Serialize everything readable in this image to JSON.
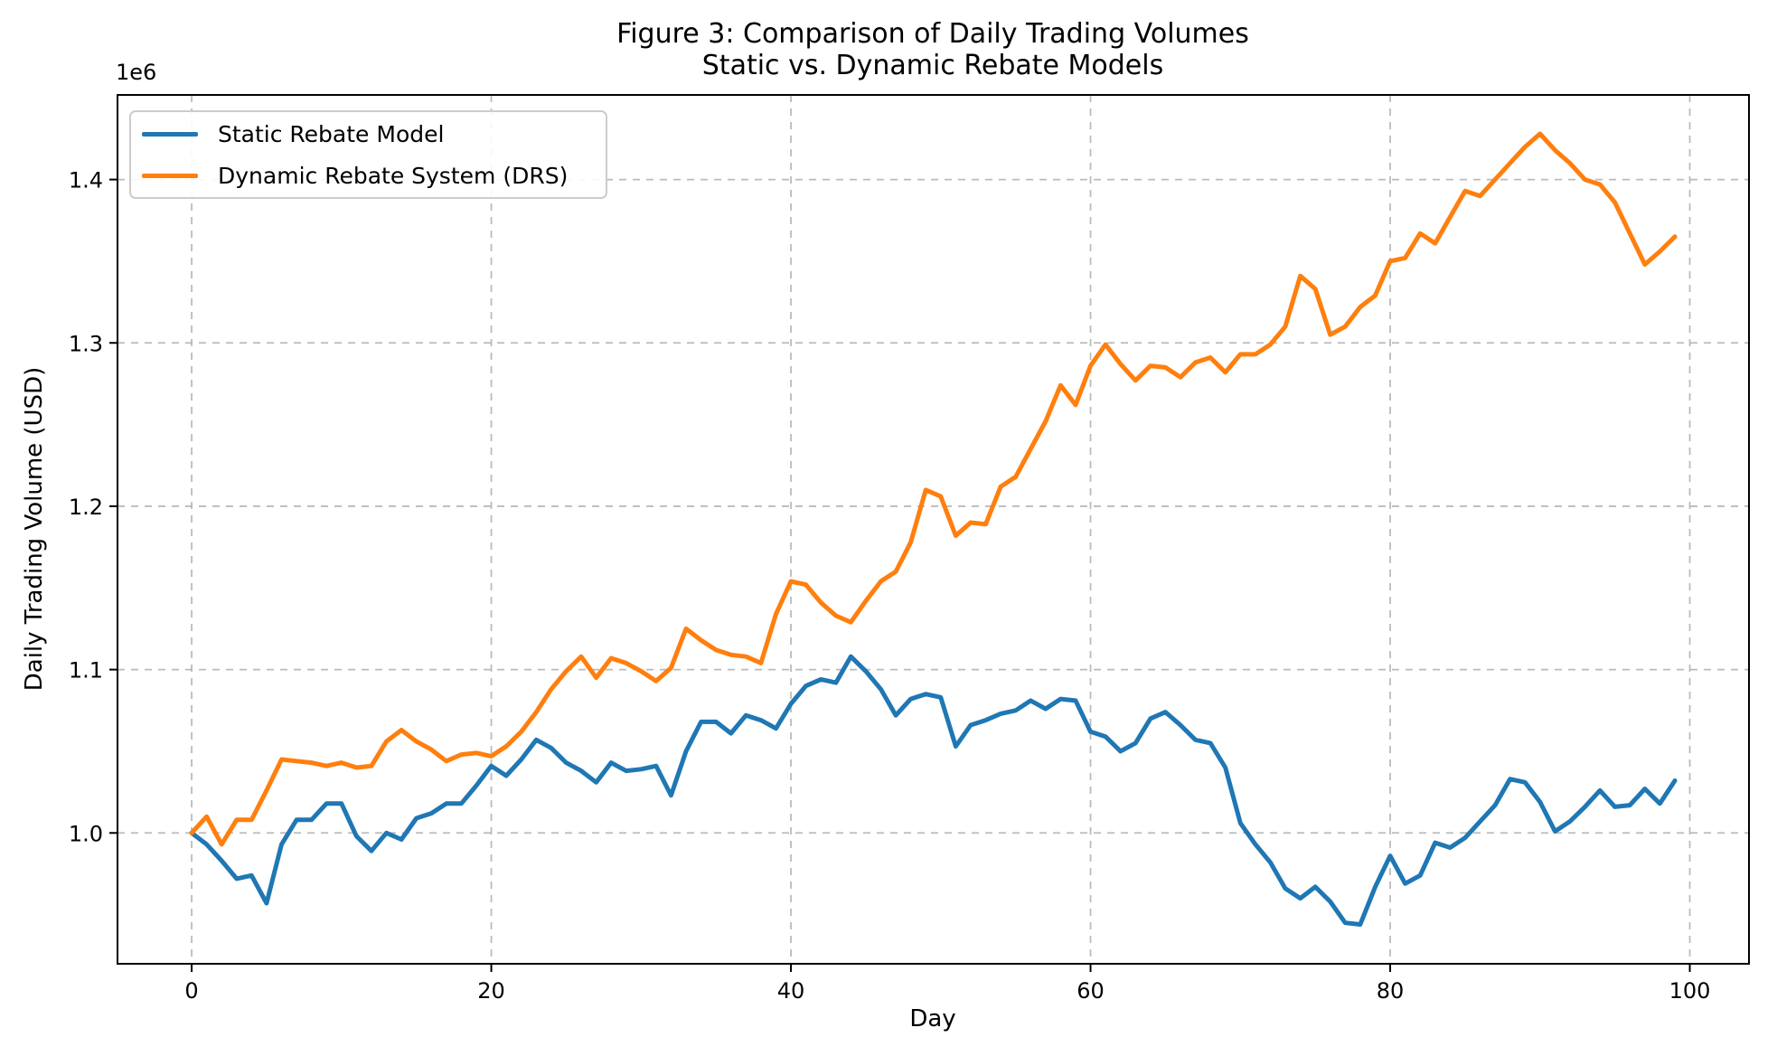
{
  "figure": {
    "title_line1": "Figure 3: Comparison of Daily Trading Volumes",
    "title_line2": "Static vs. Dynamic Rebate Models",
    "offset_label": "1e6",
    "xlabel": "Day",
    "ylabel": "Daily Trading Volume (USD)",
    "background_color": "#ffffff",
    "spine_color": "#000000",
    "grid_color": "#b0b0b0",
    "text_color": "#000000"
  },
  "legend": {
    "position": "upper left",
    "entries": [
      {
        "label": "Static Rebate Model",
        "color": "#1f77b4"
      },
      {
        "label": "Dynamic Rebate System (DRS)",
        "color": "#ff7f0e"
      }
    ]
  },
  "chart_data": {
    "type": "line",
    "title": "Figure 3: Comparison of Daily Trading Volumes — Static vs. Dynamic Rebate Models",
    "xlabel": "Day",
    "ylabel": "Daily Trading Volume (USD)",
    "y_unit_multiplier": 1000000,
    "y_offset_text": "1e6",
    "grid": true,
    "grid_style": "dashed",
    "legend_position": "upper left",
    "x_start": 0,
    "x_step": 1,
    "n_points": 100,
    "xlim": [
      -4.95,
      103.95
    ],
    "ylim": [
      0.9199,
      1.4518
    ],
    "xtick_values": [
      0,
      20,
      40,
      60,
      80,
      100
    ],
    "xtick_labels": [
      "0",
      "20",
      "40",
      "60",
      "80",
      "100"
    ],
    "ytick_values": [
      1.0,
      1.1,
      1.2,
      1.3,
      1.4
    ],
    "ytick_labels": [
      "1.0",
      "1.1",
      "1.2",
      "1.3",
      "1.4"
    ],
    "series": [
      {
        "name": "Static Rebate Model",
        "color": "#1f77b4",
        "values": [
          1.0,
          0.993,
          0.983,
          0.972,
          0.974,
          0.957,
          0.993,
          1.008,
          1.008,
          1.018,
          1.018,
          0.998,
          0.989,
          1.0,
          0.996,
          1.009,
          1.012,
          1.018,
          1.018,
          1.029,
          1.041,
          1.035,
          1.045,
          1.057,
          1.052,
          1.043,
          1.038,
          1.031,
          1.043,
          1.038,
          1.039,
          1.041,
          1.023,
          1.05,
          1.068,
          1.068,
          1.061,
          1.072,
          1.069,
          1.064,
          1.079,
          1.09,
          1.094,
          1.092,
          1.108,
          1.099,
          1.088,
          1.072,
          1.082,
          1.085,
          1.083,
          1.053,
          1.066,
          1.069,
          1.073,
          1.075,
          1.081,
          1.076,
          1.082,
          1.081,
          1.062,
          1.059,
          1.05,
          1.055,
          1.07,
          1.074,
          1.066,
          1.057,
          1.055,
          1.04,
          1.006,
          0.993,
          0.982,
          0.966,
          0.96,
          0.967,
          0.958,
          0.945,
          0.944,
          0.967,
          0.986,
          0.969,
          0.974,
          0.994,
          0.991,
          0.997,
          1.007,
          1.017,
          1.033,
          1.031,
          1.019,
          1.001,
          1.007,
          1.016,
          1.026,
          1.016,
          1.017,
          1.027,
          1.018,
          1.032
        ]
      },
      {
        "name": "Dynamic Rebate System (DRS)",
        "color": "#ff7f0e",
        "values": [
          1.0,
          1.01,
          0.993,
          1.008,
          1.008,
          1.026,
          1.045,
          1.044,
          1.043,
          1.041,
          1.043,
          1.04,
          1.041,
          1.056,
          1.063,
          1.056,
          1.051,
          1.044,
          1.048,
          1.049,
          1.047,
          1.053,
          1.062,
          1.074,
          1.088,
          1.099,
          1.108,
          1.095,
          1.107,
          1.104,
          1.099,
          1.093,
          1.101,
          1.125,
          1.118,
          1.112,
          1.109,
          1.108,
          1.104,
          1.134,
          1.154,
          1.152,
          1.141,
          1.133,
          1.129,
          1.142,
          1.154,
          1.16,
          1.178,
          1.21,
          1.206,
          1.182,
          1.19,
          1.189,
          1.212,
          1.218,
          1.235,
          1.252,
          1.274,
          1.262,
          1.286,
          1.299,
          1.287,
          1.277,
          1.286,
          1.285,
          1.279,
          1.288,
          1.291,
          1.282,
          1.293,
          1.293,
          1.299,
          1.31,
          1.341,
          1.333,
          1.305,
          1.31,
          1.322,
          1.329,
          1.35,
          1.352,
          1.367,
          1.361,
          1.377,
          1.393,
          1.39,
          1.4,
          1.41,
          1.42,
          1.428,
          1.418,
          1.41,
          1.4,
          1.397,
          1.386,
          1.367,
          1.348,
          1.356,
          1.365
        ]
      }
    ]
  }
}
